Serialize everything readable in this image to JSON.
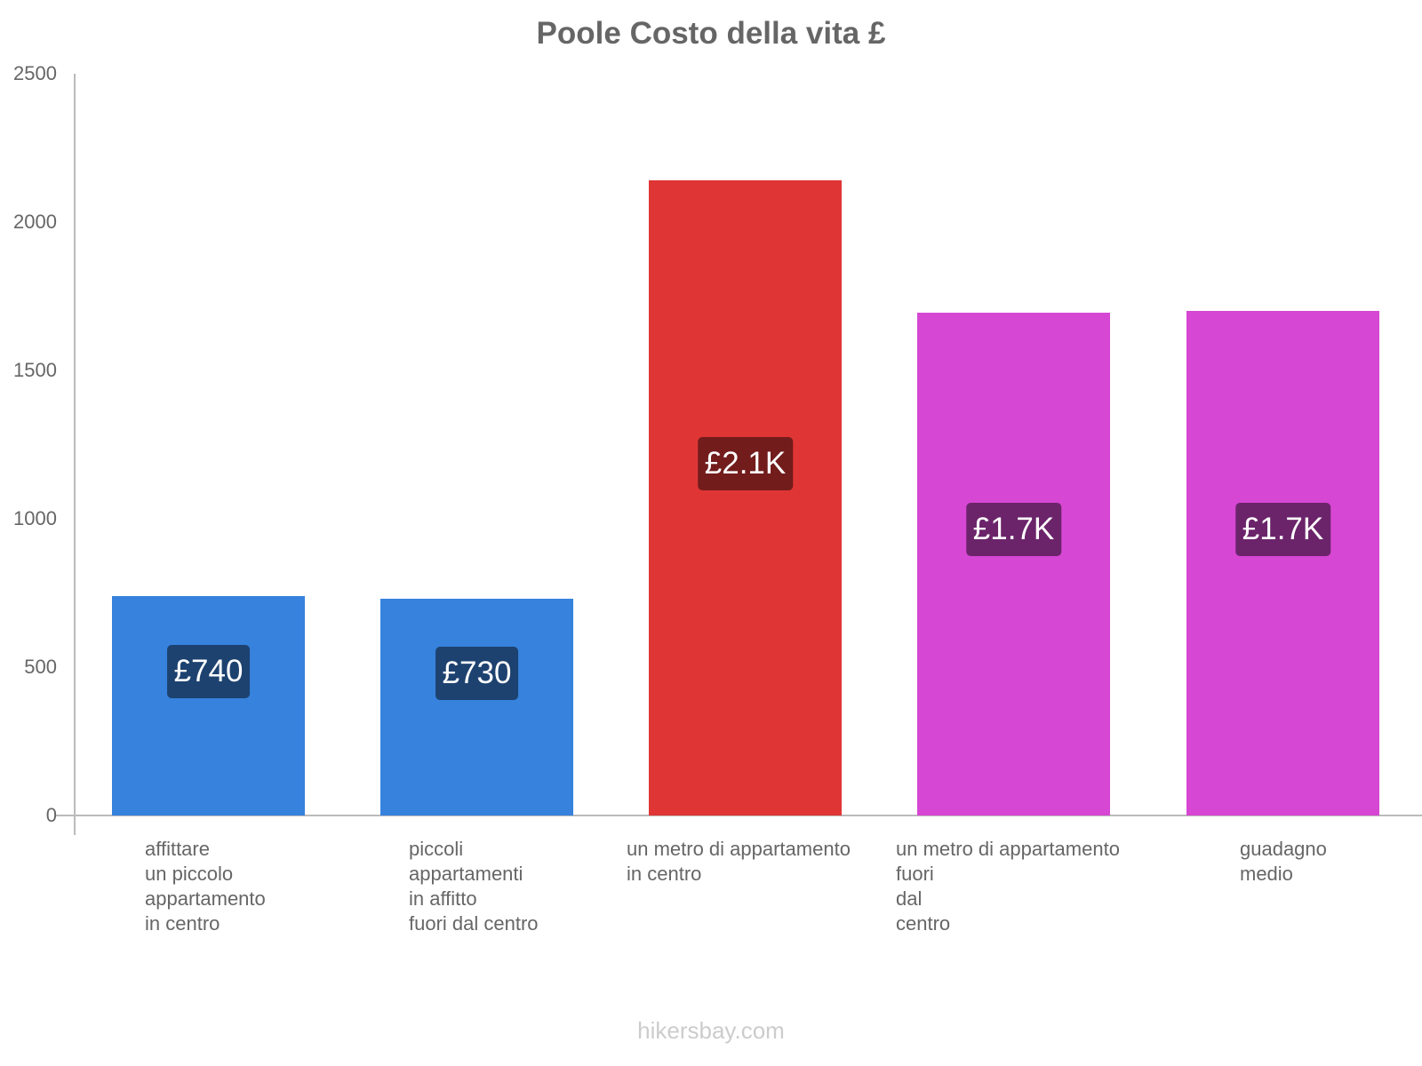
{
  "title": "Poole Costo della vita £",
  "watermark": "hikersbay.com",
  "y_ticks": [
    "0",
    "500",
    "1000",
    "1500",
    "2000",
    "2500"
  ],
  "bars": [
    {
      "label": "£740",
      "value": 740,
      "color": "#3682dd",
      "label_bg": "#1d4270",
      "category_lines": [
        "affittare",
        "un piccolo",
        "appartamento",
        "in centro"
      ]
    },
    {
      "label": "£730",
      "value": 730,
      "color": "#3682dd",
      "label_bg": "#1d4270",
      "category_lines": [
        "piccoli",
        "appartamenti",
        "in affitto",
        "fuori dal centro"
      ]
    },
    {
      "label": "£2.1K",
      "value": 2140,
      "color": "#e03535",
      "label_bg": "#721c1c",
      "category_lines": [
        "un metro di appartamento",
        "in centro"
      ]
    },
    {
      "label": "£1.7K",
      "value": 1695,
      "color": "#d647d3",
      "label_bg": "#6b246a",
      "category_lines": [
        "un metro di appartamento",
        "fuori",
        "dal",
        "centro"
      ]
    },
    {
      "label": "£1.7K",
      "value": 1700,
      "color": "#d647d3",
      "label_bg": "#6b246a",
      "category_lines": [
        "guadagno",
        "medio"
      ]
    }
  ],
  "chart_data": {
    "type": "bar",
    "title": "Poole Costo della vita £",
    "categories": [
      "affittare un piccolo appartamento in centro",
      "piccoli appartamenti in affitto fuori dal centro",
      "un metro di appartamento in centro",
      "un metro di appartamento fuori dal centro",
      "guadagno medio"
    ],
    "values": [
      740,
      730,
      2140,
      1695,
      1700
    ],
    "data_labels": [
      "£740",
      "£730",
      "£2.1K",
      "£1.7K",
      "£1.7K"
    ],
    "colors": [
      "#3682dd",
      "#3682dd",
      "#e03535",
      "#d647d3",
      "#d647d3"
    ],
    "xlabel": "",
    "ylabel": "",
    "ylim": [
      0,
      2500
    ],
    "yticks": [
      0,
      500,
      1000,
      1500,
      2000,
      2500
    ],
    "grid": false,
    "legend": null
  }
}
